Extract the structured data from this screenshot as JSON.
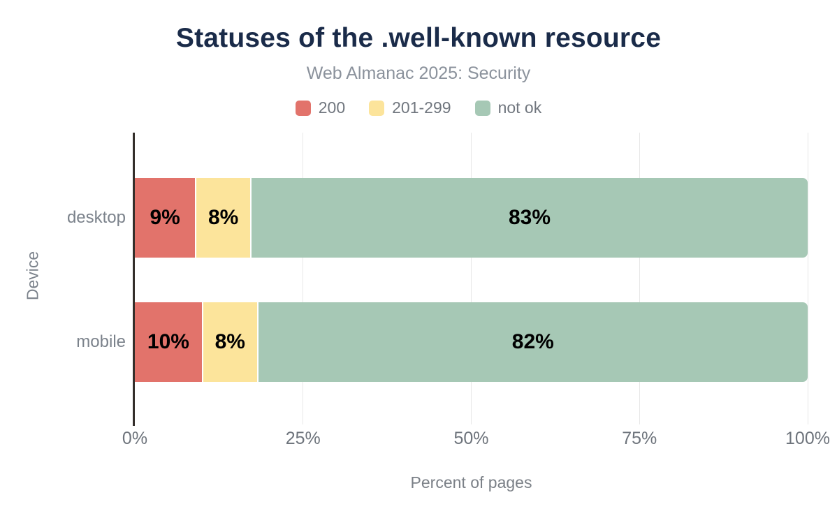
{
  "header": {
    "title": "Statuses of the .well-known resource",
    "subtitle": "Web Almanac 2025: Security"
  },
  "chart_data": {
    "type": "bar",
    "orientation": "horizontal",
    "stacked": true,
    "title": "Statuses of the .well-known resource",
    "subtitle": "Web Almanac 2025: Security",
    "categories": [
      "desktop",
      "mobile"
    ],
    "series": [
      {
        "name": "200",
        "color": "#e2736b",
        "values": [
          9,
          10
        ],
        "labels": [
          "9%",
          "10%"
        ]
      },
      {
        "name": "201-299",
        "color": "#fce49b",
        "values": [
          8,
          8
        ],
        "labels": [
          "8%",
          "8%"
        ]
      },
      {
        "name": "not ok",
        "color": "#a6c8b5",
        "values": [
          83,
          82
        ],
        "labels": [
          "83%",
          "82%"
        ]
      }
    ],
    "xlabel": "Percent of pages",
    "ylabel": "Device",
    "xlim": [
      0,
      100
    ],
    "xticks": [
      {
        "value": 0,
        "label": "0%"
      },
      {
        "value": 25,
        "label": "25%"
      },
      {
        "value": 50,
        "label": "50%"
      },
      {
        "value": 75,
        "label": "75%"
      },
      {
        "value": 100,
        "label": "100%"
      }
    ],
    "gridline_values": [
      25,
      50,
      75,
      100
    ],
    "grid": true,
    "legend_position": "top"
  },
  "colors": {
    "title_text": "#1a2b49",
    "subtitle_text": "#8b929c",
    "axis_text": "#6e747c",
    "category_text": "#7b828b",
    "bar_label_text": "#000000",
    "axis_line": "#332e2a",
    "gridline": "#e7e7e7",
    "background": "#ffffff"
  }
}
